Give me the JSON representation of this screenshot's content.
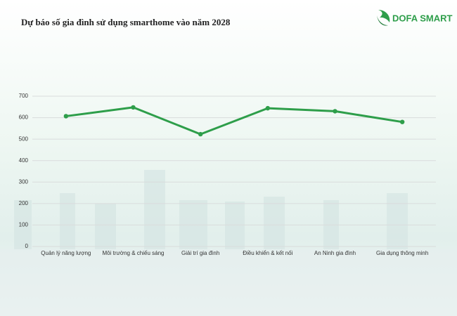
{
  "brand": "DOFA SMART",
  "chart_data": {
    "type": "line",
    "title": "Dự báo số gia đình sử dụng smarthome vào năm 2028",
    "categories": [
      "Quản lý năng lượng",
      "Môi trường & chiếu sáng",
      "Giải trí gia đình",
      "Điều khiển & kết nối",
      "An Ninh gia đình",
      "Gia dụng thông minh"
    ],
    "values": [
      607,
      648,
      523,
      644,
      630,
      580
    ],
    "color": "#2e9e4a",
    "ylim": [
      0,
      700
    ],
    "yticks": [
      0,
      100,
      200,
      300,
      400,
      500,
      600,
      700
    ],
    "grid": true
  }
}
